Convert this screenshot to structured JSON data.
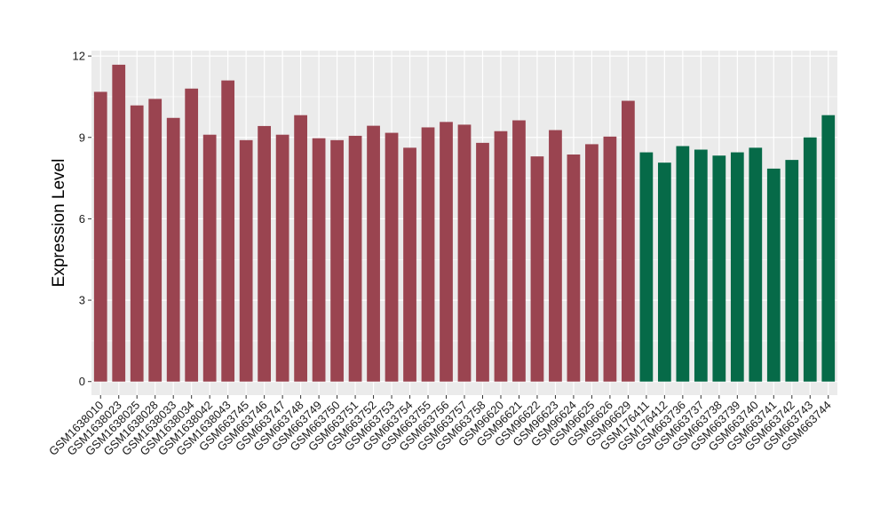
{
  "chart_data": {
    "type": "bar",
    "title": "",
    "xlabel": "",
    "ylabel": "Expression Level",
    "ylim": [
      -0.5,
      12.2
    ],
    "yticks": [
      0,
      3,
      6,
      9,
      12
    ],
    "grid": true,
    "legend": "none",
    "colors": {
      "group1": "#9a4450",
      "group2": "#066a48",
      "panel": "#ebebeb",
      "grid": "#ffffff"
    },
    "categories": [
      "GSM1638010",
      "GSM1638023",
      "GSM1638025",
      "GSM1638028",
      "GSM1638033",
      "GSM1638034",
      "GSM1638042",
      "GSM1638043",
      "GSM663745",
      "GSM663746",
      "GSM663747",
      "GSM663748",
      "GSM663749",
      "GSM663750",
      "GSM663751",
      "GSM663752",
      "GSM663753",
      "GSM663754",
      "GSM663755",
      "GSM663756",
      "GSM663757",
      "GSM663758",
      "GSM96620",
      "GSM96621",
      "GSM96622",
      "GSM96623",
      "GSM96624",
      "GSM96625",
      "GSM96626",
      "GSM96629",
      "GSM176411",
      "GSM176412",
      "GSM663736",
      "GSM663737",
      "GSM663738",
      "GSM663739",
      "GSM663740",
      "GSM663741",
      "GSM663742",
      "GSM663743",
      "GSM663744"
    ],
    "values": [
      10.68,
      11.68,
      10.18,
      10.42,
      9.72,
      10.8,
      9.1,
      11.1,
      8.9,
      9.42,
      9.1,
      9.82,
      8.97,
      8.9,
      9.06,
      9.43,
      9.17,
      8.62,
      9.37,
      9.57,
      9.47,
      8.8,
      9.23,
      9.63,
      8.3,
      9.27,
      8.37,
      8.75,
      9.03,
      10.35,
      8.45,
      8.07,
      8.68,
      8.55,
      8.33,
      8.45,
      8.62,
      7.85,
      8.17,
      9.0,
      9.82
    ],
    "groups": [
      0,
      0,
      0,
      0,
      0,
      0,
      0,
      0,
      0,
      0,
      0,
      0,
      0,
      0,
      0,
      0,
      0,
      0,
      0,
      0,
      0,
      0,
      0,
      0,
      0,
      0,
      0,
      0,
      0,
      0,
      1,
      1,
      1,
      1,
      1,
      1,
      1,
      1,
      1,
      1,
      1
    ]
  }
}
